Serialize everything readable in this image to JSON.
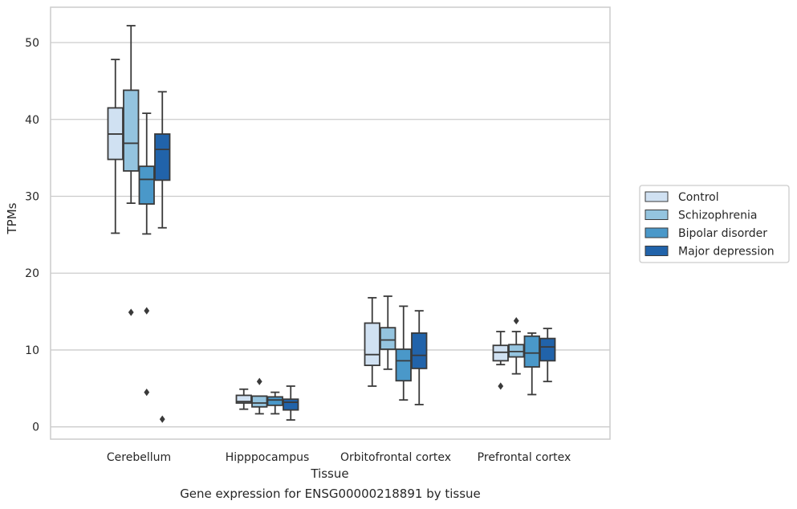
{
  "caption": "Gene expression for ENSG00000218891 by tissue",
  "chart_data": {
    "type": "box",
    "xlabel": "Tissue",
    "ylabel": "TPMs",
    "ylim": [
      -1.6,
      54.6
    ],
    "yticks": [
      0,
      10,
      20,
      30,
      40,
      50
    ],
    "categories": [
      "Cerebellum",
      "Hipppocampus",
      "Orbitofrontal cortex",
      "Prefrontal cortex"
    ],
    "grid": "horizontal",
    "legend_position": "right",
    "series": [
      {
        "name": "Control",
        "color": "#d0e1f2",
        "boxes": [
          {
            "whislo": 25.2,
            "q1": 34.8,
            "med": 38.1,
            "q3": 41.5,
            "whishi": 47.8,
            "fliers": []
          },
          {
            "whislo": 2.3,
            "q1": 3.1,
            "med": 3.3,
            "q3": 4.1,
            "whishi": 4.9,
            "fliers": []
          },
          {
            "whislo": 5.3,
            "q1": 8.0,
            "med": 9.4,
            "q3": 13.5,
            "whishi": 16.8,
            "fliers": []
          },
          {
            "whislo": 8.1,
            "q1": 8.6,
            "med": 9.7,
            "q3": 10.6,
            "whishi": 12.4,
            "fliers": [
              5.3
            ]
          }
        ]
      },
      {
        "name": "Schizophrenia",
        "color": "#94c4df",
        "boxes": [
          {
            "whislo": 29.1,
            "q1": 33.3,
            "med": 36.9,
            "q3": 43.8,
            "whishi": 52.2,
            "fliers": [
              14.9
            ]
          },
          {
            "whislo": 1.7,
            "q1": 2.6,
            "med": 3.1,
            "q3": 4.0,
            "whishi": 4.0,
            "fliers": [
              5.9
            ]
          },
          {
            "whislo": 7.5,
            "q1": 10.1,
            "med": 11.3,
            "q3": 12.9,
            "whishi": 17.0,
            "fliers": []
          },
          {
            "whislo": 6.9,
            "q1": 9.1,
            "med": 9.8,
            "q3": 10.7,
            "whishi": 12.4,
            "fliers": [
              13.8
            ]
          }
        ]
      },
      {
        "name": "Bipolar disorder",
        "color": "#4a98c9",
        "boxes": [
          {
            "whislo": 25.1,
            "q1": 29.0,
            "med": 32.2,
            "q3": 33.9,
            "whishi": 40.8,
            "fliers": [
              15.1,
              4.5
            ]
          },
          {
            "whislo": 1.7,
            "q1": 2.8,
            "med": 3.5,
            "q3": 3.9,
            "whishi": 4.5,
            "fliers": []
          },
          {
            "whislo": 3.5,
            "q1": 6.0,
            "med": 8.6,
            "q3": 10.1,
            "whishi": 15.7,
            "fliers": []
          },
          {
            "whislo": 4.2,
            "q1": 7.8,
            "med": 9.6,
            "q3": 11.8,
            "whishi": 12.2,
            "fliers": []
          }
        ]
      },
      {
        "name": "Major depression",
        "color": "#2163aa",
        "boxes": [
          {
            "whislo": 25.9,
            "q1": 32.1,
            "med": 36.1,
            "q3": 38.1,
            "whishi": 43.6,
            "fliers": [
              1.0
            ]
          },
          {
            "whislo": 0.9,
            "q1": 2.2,
            "med": 3.2,
            "q3": 3.6,
            "whishi": 5.3,
            "fliers": []
          },
          {
            "whislo": 2.9,
            "q1": 7.6,
            "med": 9.3,
            "q3": 12.2,
            "whishi": 15.1,
            "fliers": []
          },
          {
            "whislo": 5.9,
            "q1": 8.6,
            "med": 10.4,
            "q3": 11.5,
            "whishi": 12.8,
            "fliers": []
          }
        ]
      }
    ],
    "style": {
      "grid_color": "#cccccc",
      "frame_color": "#cccccc",
      "line_color": "#3a3a3a"
    }
  }
}
